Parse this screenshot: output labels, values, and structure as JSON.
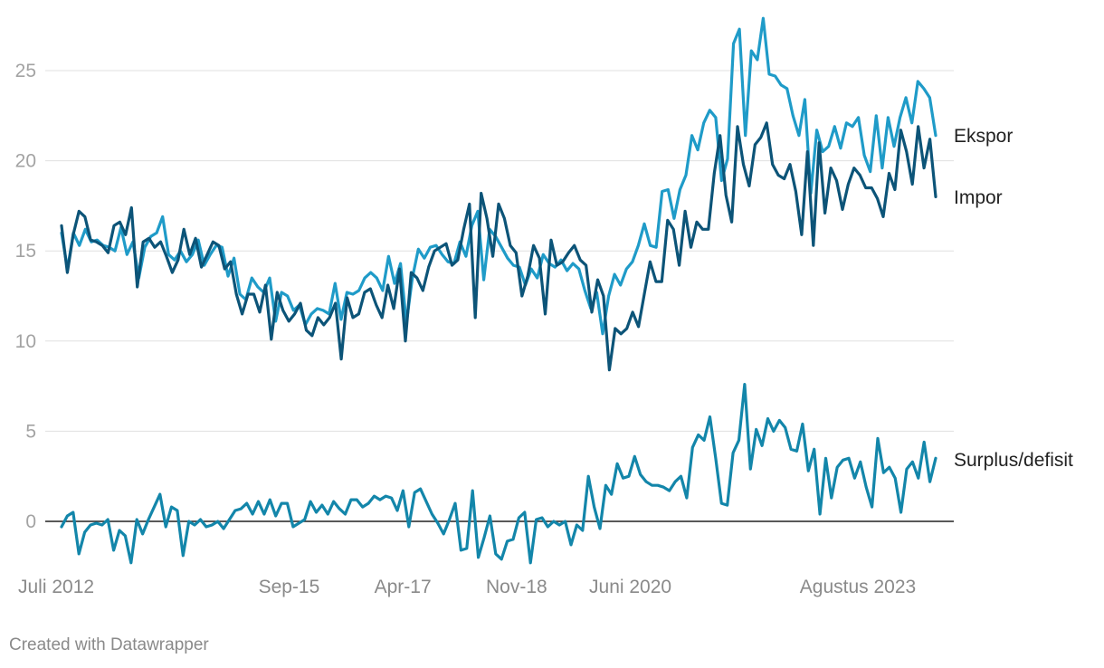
{
  "chart_data": {
    "type": "line",
    "title": "",
    "xlabel": "",
    "ylabel": "",
    "x_start": "2012-07",
    "x_end": "2024-09",
    "ylim": [
      -2.5,
      28
    ],
    "y_ticks": [
      0,
      5,
      10,
      15,
      20,
      25
    ],
    "x_ticks": [
      {
        "date": "2012-07",
        "label": "Juli 2012"
      },
      {
        "date": "2015-09",
        "label": "Sep-15"
      },
      {
        "date": "2017-04",
        "label": "Apr-17"
      },
      {
        "date": "2018-11",
        "label": "Nov-18"
      },
      {
        "date": "2020-06",
        "label": "Juni 2020"
      },
      {
        "date": "2023-08",
        "label": "Agustus 2023"
      }
    ],
    "grid": true,
    "legend": "direct labels at right end of lines",
    "series": [
      {
        "name": "Ekspor",
        "color": "#1f9bc8",
        "values": [
          16.0,
          14.0,
          16.0,
          15.3,
          16.2,
          15.5,
          15.6,
          15.3,
          15.2,
          15.0,
          16.3,
          14.8,
          15.5,
          13.5,
          15.2,
          15.8,
          16.0,
          16.9,
          14.8,
          14.5,
          15.0,
          14.4,
          14.8,
          15.6,
          14.2,
          14.8,
          15.3,
          15.2,
          13.6,
          14.6,
          12.6,
          12.3,
          13.5,
          13.0,
          12.7,
          13.5,
          11.1,
          12.7,
          12.5,
          11.7,
          12.0,
          10.9,
          11.5,
          11.8,
          11.7,
          11.5,
          13.2,
          11.2,
          12.7,
          12.6,
          12.8,
          13.5,
          13.8,
          13.5,
          12.8,
          14.7,
          13.2,
          14.3,
          11.0,
          13.5,
          15.1,
          14.6,
          15.2,
          15.3,
          14.8,
          14.4,
          14.3,
          15.5,
          14.7,
          16.4,
          17.2,
          13.4,
          16.2,
          15.8,
          15.2,
          14.6,
          14.2,
          14.1,
          13.1,
          14.0,
          13.5,
          14.8,
          14.3,
          14.1,
          14.5,
          13.9,
          14.3,
          14.0,
          12.8,
          11.8,
          12.7,
          10.4,
          12.5,
          13.7,
          13.1,
          14.0,
          14.4,
          15.3,
          16.5,
          15.3,
          15.2,
          18.3,
          18.4,
          16.8,
          18.4,
          19.2,
          21.4,
          20.6,
          22.1,
          22.8,
          22.4,
          18.9,
          20.1,
          26.5,
          27.3,
          21.4,
          26.1,
          25.6,
          27.9,
          24.8,
          24.7,
          24.2,
          24.0,
          22.5,
          21.4,
          23.4,
          18.2,
          21.7,
          20.5,
          20.8,
          21.9,
          20.7,
          22.1,
          21.9,
          22.4,
          20.3,
          19.4,
          22.5,
          19.6,
          22.4,
          20.8,
          22.4,
          23.5,
          22.1,
          24.4,
          24.0,
          23.5,
          21.4
        ]
      },
      {
        "name": "Impor",
        "color": "#0c5478",
        "values": [
          16.4,
          13.8,
          15.9,
          17.2,
          16.9,
          15.6,
          15.5,
          15.3,
          14.9,
          16.4,
          16.6,
          15.9,
          17.4,
          13.0,
          15.5,
          15.7,
          15.2,
          15.5,
          14.7,
          13.8,
          14.5,
          16.2,
          14.8,
          15.7,
          14.1,
          14.8,
          15.5,
          15.3,
          14.0,
          14.4,
          12.6,
          11.5,
          12.6,
          12.6,
          11.6,
          13.1,
          10.1,
          12.7,
          11.7,
          11.1,
          11.5,
          12.1,
          10.6,
          10.3,
          11.3,
          10.9,
          11.3,
          12.1,
          9.0,
          12.4,
          11.3,
          11.5,
          12.7,
          12.9,
          12.0,
          11.3,
          13.1,
          11.8,
          14.0,
          10.0,
          13.8,
          13.5,
          12.8,
          14.1,
          15.0,
          15.2,
          15.4,
          14.2,
          14.5,
          16.2,
          17.6,
          11.3,
          18.2,
          16.8,
          14.7,
          17.6,
          16.8,
          15.3,
          14.9,
          12.5,
          13.6,
          15.3,
          14.6,
          11.5,
          15.6,
          14.2,
          14.4,
          14.9,
          15.3,
          14.5,
          14.2,
          11.6,
          13.4,
          12.5,
          8.4,
          10.7,
          10.4,
          10.7,
          11.6,
          10.8,
          12.6,
          14.4,
          13.3,
          13.3,
          16.7,
          16.2,
          14.2,
          17.2,
          15.2,
          16.6,
          16.2,
          16.2,
          19.3,
          21.4,
          18.1,
          16.6,
          21.9,
          19.8,
          18.6,
          20.9,
          21.3,
          22.1,
          19.8,
          19.2,
          19.0,
          19.8,
          18.3,
          15.9,
          20.5,
          15.3,
          21.0,
          17.1,
          19.6,
          18.9,
          17.3,
          18.7,
          19.6,
          19.2,
          18.5,
          18.5,
          17.9,
          16.9,
          19.3,
          18.4,
          21.7,
          20.5,
          18.7,
          21.9,
          19.6,
          21.2,
          18.0
        ]
      },
      {
        "name": "Surplus/defisit",
        "color": "#1386aa",
        "values": [
          -0.3,
          0.3,
          0.5,
          -1.8,
          -0.6,
          -0.2,
          -0.1,
          -0.2,
          0.1,
          -1.6,
          -0.5,
          -0.8,
          -2.3,
          0.1,
          -0.7,
          0.1,
          0.8,
          1.5,
          -0.3,
          0.8,
          0.6,
          -1.9,
          0.0,
          -0.2,
          0.1,
          -0.3,
          -0.2,
          0.0,
          -0.4,
          0.1,
          0.6,
          0.7,
          1.0,
          0.4,
          1.1,
          0.4,
          1.2,
          0.3,
          1.0,
          1.0,
          -0.3,
          -0.1,
          0.1,
          1.1,
          0.5,
          0.9,
          0.4,
          1.1,
          0.7,
          0.4,
          1.2,
          1.2,
          0.8,
          1.0,
          1.4,
          1.2,
          1.4,
          1.3,
          0.6,
          1.7,
          -0.3,
          1.6,
          1.8,
          1.1,
          0.4,
          -0.1,
          -0.7,
          0.1,
          1.0,
          -1.6,
          -1.5,
          1.7,
          -2.0,
          -0.9,
          0.3,
          -1.8,
          -2.1,
          -1.1,
          -1.0,
          0.2,
          0.5,
          -2.3,
          0.1,
          0.2,
          -0.3,
          0.0,
          -0.2,
          0.0,
          -1.3,
          -0.2,
          -0.5,
          2.5,
          0.8,
          -0.4,
          2.0,
          1.5,
          3.2,
          2.4,
          2.5,
          3.6,
          2.6,
          2.2,
          2.0,
          2.0,
          1.9,
          1.7,
          2.2,
          2.5,
          1.3,
          4.1,
          4.8,
          4.5,
          5.8,
          3.5,
          1.0,
          0.9,
          3.8,
          4.5,
          7.6,
          2.9,
          5.1,
          4.2,
          5.7,
          5.0,
          5.6,
          5.2,
          4.0,
          3.9,
          5.4,
          2.8,
          4.0,
          0.4,
          3.5,
          1.3,
          3.0,
          3.4,
          3.5,
          2.4,
          3.3,
          1.9,
          0.8,
          4.6,
          2.7,
          3.0,
          2.4,
          0.5,
          2.9,
          3.3,
          2.4,
          4.4,
          2.2,
          3.5
        ]
      }
    ]
  },
  "footer": {
    "credit": "Created with Datawrapper"
  }
}
